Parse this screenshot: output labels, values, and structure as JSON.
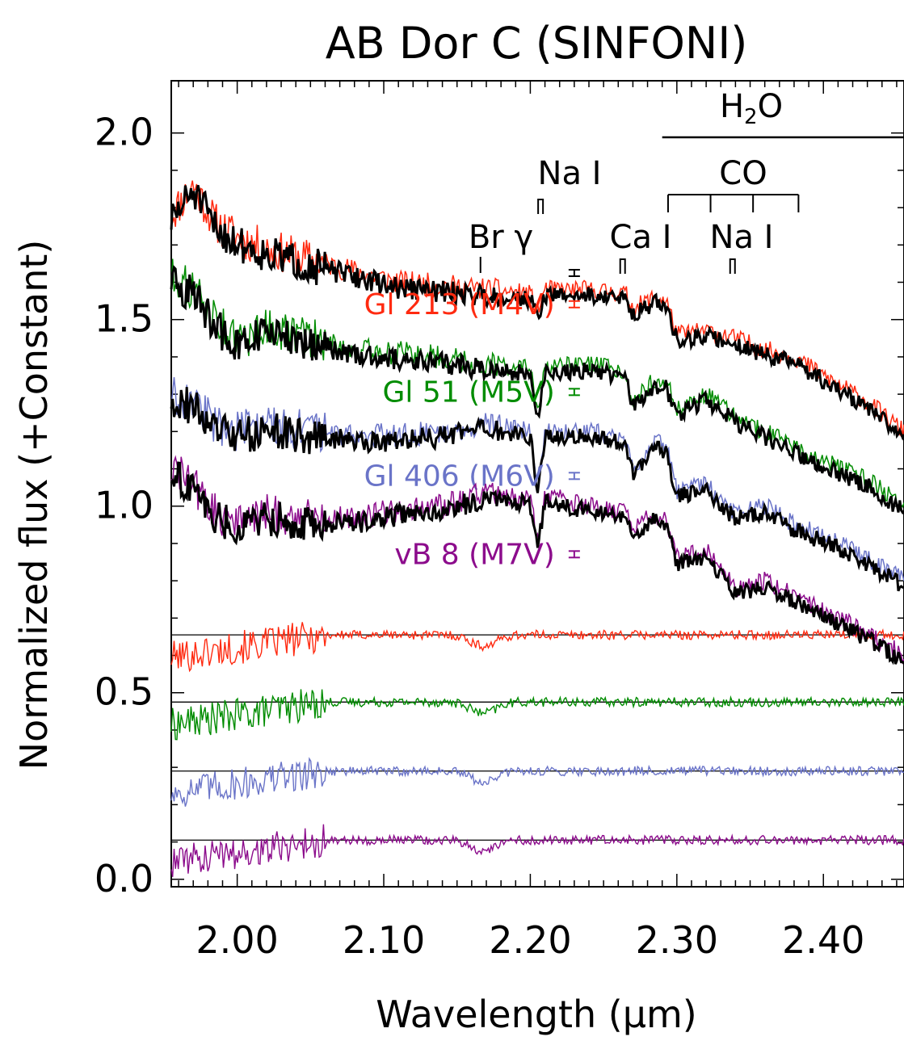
{
  "chart_data": {
    "type": "line",
    "title": "AB Dor C (SINFONI)",
    "xlabel": "Wavelength (μm)",
    "ylabel": "Normalized flux (+Constant)",
    "xlim": [
      1.955,
      2.455
    ],
    "ylim": [
      -0.02,
      2.14
    ],
    "x_ticks": [
      2.0,
      2.1,
      2.2,
      2.3,
      2.4
    ],
    "x_tick_labels": [
      "2.00",
      "2.10",
      "2.20",
      "2.30",
      "2.40"
    ],
    "y_ticks": [
      0.0,
      0.5,
      1.0,
      1.5,
      2.0
    ],
    "y_tick_labels": [
      "0.0",
      "0.5",
      "1.0",
      "1.5",
      "2.0"
    ],
    "grid": false,
    "legend": "inline labels",
    "series": [
      {
        "name": "Gl 213 (M4V)",
        "color": "#ff2a10",
        "label_anchor": [
          2.155,
          1.515
        ],
        "errorbar_x": 2.23,
        "x": [
          1.955,
          1.97,
          1.985,
          2.0,
          2.02,
          2.05,
          2.08,
          2.11,
          2.14,
          2.17,
          2.2,
          2.205,
          2.21,
          2.24,
          2.265,
          2.27,
          2.285,
          2.293,
          2.3,
          2.32,
          2.34,
          2.36,
          2.38,
          2.4,
          2.43,
          2.455
        ],
        "y": [
          1.78,
          1.86,
          1.76,
          1.72,
          1.69,
          1.66,
          1.63,
          1.6,
          1.59,
          1.58,
          1.57,
          1.52,
          1.58,
          1.58,
          1.57,
          1.53,
          1.56,
          1.55,
          1.46,
          1.47,
          1.45,
          1.42,
          1.4,
          1.35,
          1.28,
          1.2
        ],
        "residual_offset": 0.655
      },
      {
        "name": "Gl 51 (M5V)",
        "color": "#008c00",
        "label_anchor": [
          2.155,
          1.28
        ],
        "errorbar_x": 2.23,
        "x": [
          1.955,
          1.97,
          1.985,
          2.0,
          2.02,
          2.05,
          2.08,
          2.11,
          2.14,
          2.17,
          2.2,
          2.205,
          2.21,
          2.24,
          2.265,
          2.27,
          2.285,
          2.293,
          2.3,
          2.32,
          2.34,
          2.36,
          2.38,
          2.4,
          2.43,
          2.455
        ],
        "y": [
          1.62,
          1.58,
          1.5,
          1.44,
          1.48,
          1.45,
          1.42,
          1.41,
          1.4,
          1.38,
          1.37,
          1.24,
          1.37,
          1.38,
          1.36,
          1.28,
          1.34,
          1.33,
          1.26,
          1.3,
          1.24,
          1.2,
          1.16,
          1.12,
          1.07,
          1.0
        ],
        "residual_offset": 0.475
      },
      {
        "name": "Gl 406 (M6V)",
        "color": "#6a74c8",
        "label_anchor": [
          2.155,
          1.055
        ],
        "errorbar_x": 2.23,
        "x": [
          1.955,
          1.97,
          1.985,
          2.0,
          2.02,
          2.05,
          2.08,
          2.11,
          2.14,
          2.17,
          2.2,
          2.205,
          2.21,
          2.24,
          2.265,
          2.27,
          2.285,
          2.293,
          2.3,
          2.32,
          2.34,
          2.36,
          2.38,
          2.4,
          2.43,
          2.455
        ],
        "y": [
          1.3,
          1.28,
          1.22,
          1.2,
          1.22,
          1.2,
          1.19,
          1.19,
          1.2,
          1.22,
          1.2,
          1.06,
          1.2,
          1.2,
          1.18,
          1.1,
          1.18,
          1.16,
          1.04,
          1.06,
          0.98,
          1.0,
          0.95,
          0.92,
          0.86,
          0.8
        ],
        "residual_offset": 0.29
      },
      {
        "name": "vB 8 (M7V)",
        "color": "#8c0c8c",
        "label_anchor": [
          2.155,
          0.845
        ],
        "errorbar_x": 2.23,
        "x": [
          1.955,
          1.97,
          1.985,
          2.0,
          2.02,
          2.05,
          2.08,
          2.11,
          2.14,
          2.17,
          2.2,
          2.205,
          2.21,
          2.24,
          2.265,
          2.27,
          2.285,
          2.293,
          2.3,
          2.32,
          2.34,
          2.36,
          2.38,
          2.4,
          2.43,
          2.455
        ],
        "y": [
          1.1,
          1.06,
          0.98,
          0.96,
          0.98,
          0.97,
          0.97,
          0.99,
          1.0,
          1.04,
          1.02,
          0.9,
          1.03,
          1.0,
          0.98,
          0.94,
          0.98,
          0.96,
          0.86,
          0.88,
          0.78,
          0.8,
          0.76,
          0.72,
          0.66,
          0.6
        ],
        "residual_offset": 0.105
      }
    ],
    "ab_dor_c_color": "#000000",
    "annotations": {
      "h2o": "H2O",
      "co": "CO",
      "na_i_top": "Na I",
      "br_gamma": "Br γ",
      "ca_i": "Ca I",
      "na_i_bottom": "Na I"
    },
    "feature_markers": {
      "h2o_range": [
        2.29,
        2.455
      ],
      "co_bandheads": [
        2.294,
        2.323,
        2.352,
        2.383
      ],
      "na_i_top": 2.207,
      "br_gamma": 2.166,
      "ca_i": 2.263,
      "na_i_bottom": 2.338,
      "ab_errorbar_x": 2.23
    }
  }
}
